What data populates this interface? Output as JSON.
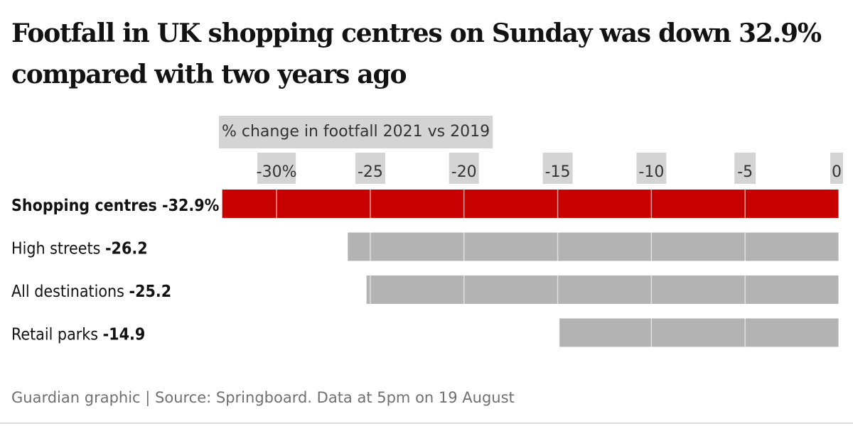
{
  "title": "Footfall in UK shopping centres on Sunday was down 32.9% compared with two years ago",
  "footer": "Guardian graphic | Source: Springboard. Data at 5pm on 19 August",
  "colors": {
    "highlight": "#c70000",
    "bar": "#b3b3b3",
    "tick_bg": "#d4d4d4",
    "text": "#121212",
    "grid": "#ffffff"
  },
  "chart_data": {
    "type": "bar",
    "orientation": "horizontal",
    "title": "Footfall in UK shopping centres on Sunday was down 32.9% compared with two years ago",
    "xlabel": "% change in footfall 2021 vs 2019",
    "ylabel": "",
    "xlim": [
      -33,
      0
    ],
    "xticks": [
      -30,
      -25,
      -20,
      -15,
      -10,
      -5,
      0
    ],
    "xtick_labels": [
      "-30%",
      "-25",
      "-20",
      "-15",
      "-10",
      "-5",
      "0"
    ],
    "categories": [
      "Shopping centres",
      "High streets",
      "All destinations",
      "Retail parks"
    ],
    "values": [
      -32.9,
      -26.2,
      -25.2,
      -14.9
    ],
    "value_labels": [
      "-32.9%",
      "-26.2",
      "-25.2",
      "-14.9"
    ],
    "highlighted": [
      true,
      false,
      false,
      false
    ]
  }
}
